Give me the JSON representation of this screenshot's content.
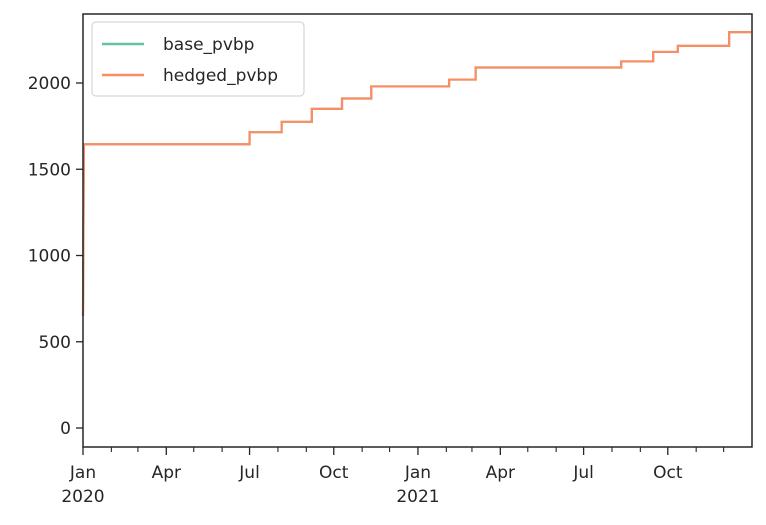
{
  "chart_data": {
    "type": "line",
    "title": "",
    "xlabel": "",
    "ylabel": "",
    "x_range": [
      "2020-01-01",
      "2021-12-31"
    ],
    "ylim": [
      -110,
      2400
    ],
    "grid": false,
    "legend_position": "upper-left",
    "y_ticks": [
      {
        "value": 0,
        "label": "0"
      },
      {
        "value": 500,
        "label": "500"
      },
      {
        "value": 1000,
        "label": "1000"
      },
      {
        "value": 1500,
        "label": "1500"
      },
      {
        "value": 2000,
        "label": "2000"
      }
    ],
    "x_major_ticks": [
      {
        "date": "2020-01-01",
        "label": "Jan",
        "year_label": "2020"
      },
      {
        "date": "2020-04-01",
        "label": "Apr",
        "year_label": ""
      },
      {
        "date": "2020-07-01",
        "label": "Jul",
        "year_label": ""
      },
      {
        "date": "2020-10-01",
        "label": "Oct",
        "year_label": ""
      },
      {
        "date": "2021-01-01",
        "label": "Jan",
        "year_label": "2021"
      },
      {
        "date": "2021-04-01",
        "label": "Apr",
        "year_label": ""
      },
      {
        "date": "2021-07-01",
        "label": "Jul",
        "year_label": ""
      },
      {
        "date": "2021-10-01",
        "label": "Oct",
        "year_label": ""
      }
    ],
    "x_minor_ticks": [
      "2020-02-01",
      "2020-03-01",
      "2020-05-01",
      "2020-06-01",
      "2020-08-01",
      "2020-09-01",
      "2020-11-01",
      "2020-12-01",
      "2021-02-01",
      "2021-03-01",
      "2021-05-01",
      "2021-06-01",
      "2021-08-01",
      "2021-09-01",
      "2021-11-01",
      "2021-12-01"
    ],
    "series": [
      {
        "name": "base_pvbp",
        "color": "#66c2a5",
        "points": [
          [
            "2020-01-01",
            650
          ],
          [
            "2020-01-02",
            1645
          ],
          [
            "2020-07-01",
            1645
          ],
          [
            "2020-07-01",
            1715
          ],
          [
            "2020-08-05",
            1715
          ],
          [
            "2020-08-05",
            1775
          ],
          [
            "2020-09-07",
            1775
          ],
          [
            "2020-09-07",
            1850
          ],
          [
            "2020-10-10",
            1850
          ],
          [
            "2020-10-10",
            1910
          ],
          [
            "2020-11-11",
            1910
          ],
          [
            "2020-11-11",
            1980
          ],
          [
            "2021-02-04",
            1980
          ],
          [
            "2021-02-04",
            2020
          ],
          [
            "2021-03-05",
            2020
          ],
          [
            "2021-03-05",
            2090
          ],
          [
            "2021-08-11",
            2090
          ],
          [
            "2021-08-11",
            2125
          ],
          [
            "2021-09-15",
            2125
          ],
          [
            "2021-09-15",
            2180
          ],
          [
            "2021-10-12",
            2180
          ],
          [
            "2021-10-12",
            2215
          ],
          [
            "2021-12-07",
            2215
          ],
          [
            "2021-12-07",
            2295
          ],
          [
            "2021-12-31",
            2295
          ]
        ]
      },
      {
        "name": "hedged_pvbp",
        "color": "#fc8d62",
        "points": [
          [
            "2020-01-01",
            650
          ],
          [
            "2020-01-02",
            1645
          ],
          [
            "2020-07-01",
            1645
          ],
          [
            "2020-07-01",
            1715
          ],
          [
            "2020-08-05",
            1715
          ],
          [
            "2020-08-05",
            1775
          ],
          [
            "2020-09-07",
            1775
          ],
          [
            "2020-09-07",
            1850
          ],
          [
            "2020-10-10",
            1850
          ],
          [
            "2020-10-10",
            1910
          ],
          [
            "2020-11-11",
            1910
          ],
          [
            "2020-11-11",
            1980
          ],
          [
            "2021-02-04",
            1980
          ],
          [
            "2021-02-04",
            2020
          ],
          [
            "2021-03-05",
            2020
          ],
          [
            "2021-03-05",
            2090
          ],
          [
            "2021-08-11",
            2090
          ],
          [
            "2021-08-11",
            2125
          ],
          [
            "2021-09-15",
            2125
          ],
          [
            "2021-09-15",
            2180
          ],
          [
            "2021-10-12",
            2180
          ],
          [
            "2021-10-12",
            2215
          ],
          [
            "2021-12-07",
            2215
          ],
          [
            "2021-12-07",
            2295
          ],
          [
            "2021-12-31",
            2295
          ]
        ]
      }
    ]
  }
}
